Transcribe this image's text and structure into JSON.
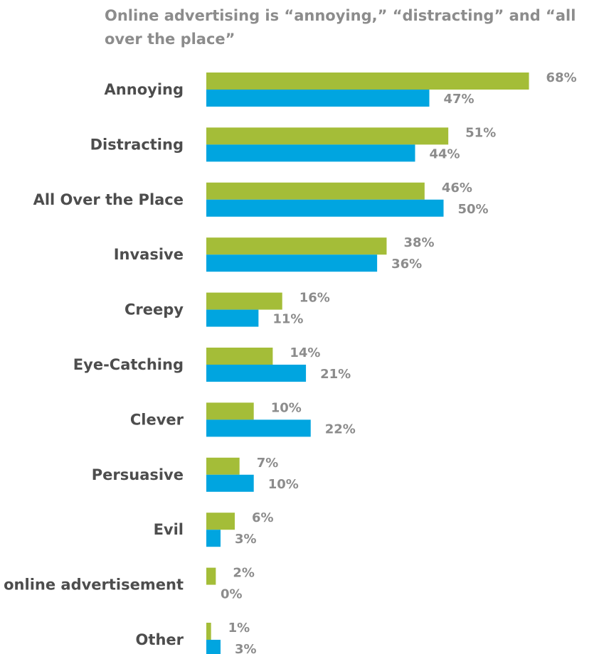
{
  "chart_data": {
    "type": "bar",
    "orientation": "horizontal",
    "title": "Online advertising is “annoying,” “distracting” and “all over the place”",
    "categories": [
      "Annoying",
      "Distracting",
      "All Over the Place",
      "Invasive",
      "Creepy",
      "Eye-Catching",
      "Clever",
      "Persuasive",
      "Evil",
      "I've never noticed an online advertisement",
      "Other"
    ],
    "series": [
      {
        "values": [
          68,
          51,
          46,
          38,
          16,
          14,
          10,
          7,
          6,
          2,
          1
        ],
        "labels": [
          "68%",
          "51%",
          "46%",
          "38%",
          "16%",
          "14%",
          "10%",
          "7%",
          "6%",
          "2%",
          "1%"
        ],
        "color": "#a4bd38"
      },
      {
        "values": [
          47,
          44,
          50,
          36,
          11,
          21,
          22,
          10,
          3,
          0,
          3
        ],
        "labels": [
          "47%",
          "44%",
          "50%",
          "36%",
          "11%",
          "21%",
          "22%",
          "10%",
          "3%",
          "0%",
          "3%"
        ],
        "color": "#00a5e0"
      }
    ],
    "xlim": [
      0,
      100
    ],
    "value_unit": "%",
    "legend": "none",
    "grid": false
  }
}
